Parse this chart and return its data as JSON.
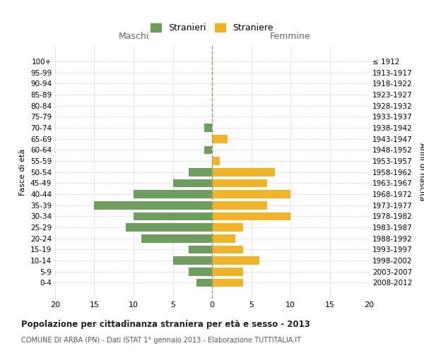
{
  "age_groups": [
    "100+",
    "95-99",
    "90-94",
    "85-89",
    "80-84",
    "75-79",
    "70-74",
    "65-69",
    "60-64",
    "55-59",
    "50-54",
    "45-49",
    "40-44",
    "35-39",
    "30-34",
    "25-29",
    "20-24",
    "15-19",
    "10-14",
    "5-9",
    "0-4"
  ],
  "birth_years": [
    "≤ 1912",
    "1913-1917",
    "1918-1922",
    "1923-1927",
    "1928-1932",
    "1933-1937",
    "1938-1942",
    "1943-1947",
    "1948-1952",
    "1953-1957",
    "1958-1962",
    "1963-1967",
    "1968-1972",
    "1973-1977",
    "1978-1982",
    "1983-1987",
    "1988-1992",
    "1993-1997",
    "1998-2002",
    "2003-2007",
    "2008-2012"
  ],
  "maschi": [
    0,
    0,
    0,
    0,
    0,
    0,
    1,
    0,
    1,
    0,
    3,
    5,
    10,
    15,
    10,
    11,
    9,
    3,
    5,
    3,
    2
  ],
  "femmine": [
    0,
    0,
    0,
    0,
    0,
    0,
    0,
    2,
    0,
    1,
    8,
    7,
    10,
    7,
    10,
    4,
    3,
    4,
    6,
    4,
    4
  ],
  "maschi_color": "#6e9e5e",
  "femmine_color": "#f0b429",
  "title": "Popolazione per cittadinanza straniera per età e sesso - 2013",
  "subtitle": "COMUNE DI ARBA (PN) - Dati ISTAT 1° gennaio 2013 - Elaborazione TUTTITALIA.IT",
  "xlabel_left": "Maschi",
  "xlabel_right": "Femmine",
  "ylabel_left": "Fasce di età",
  "ylabel_right": "Anni di nascita",
  "legend_maschi": "Stranieri",
  "legend_femmine": "Straniere",
  "xlim": 20,
  "background_color": "#ffffff",
  "grid_color": "#cccccc"
}
